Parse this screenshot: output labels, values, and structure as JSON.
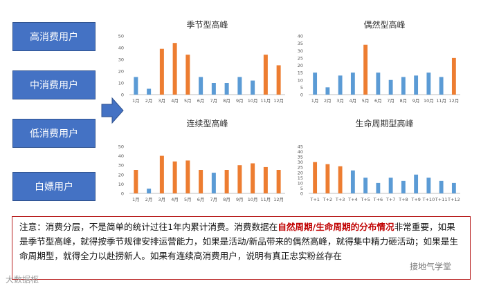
{
  "segments": [
    "高消费用户",
    "中消费用户",
    "低消费用户",
    "白嫖用户"
  ],
  "colors": {
    "blue": "#5B9BD5",
    "orange": "#ED7D31",
    "box_blue": "#4472C4",
    "highlight": "#C00000"
  },
  "chart_data": [
    {
      "type": "bar",
      "title": "季节型高峰",
      "categories": [
        "1月",
        "2月",
        "3月",
        "4月",
        "5月",
        "6月",
        "7月",
        "8月",
        "9月",
        "10月",
        "11月",
        "12月"
      ],
      "values": [
        15,
        5,
        39,
        44,
        34,
        15,
        10,
        10,
        15,
        12,
        34,
        25
      ],
      "highlight": [
        false,
        false,
        true,
        true,
        true,
        false,
        false,
        false,
        false,
        false,
        true,
        true
      ],
      "ylim": [
        0,
        50
      ],
      "yticks": [
        0,
        10,
        20,
        30,
        40,
        50
      ],
      "grid": false
    },
    {
      "type": "bar",
      "title": "偶然型高峰",
      "categories": [
        "1月",
        "2月",
        "3月",
        "4月",
        "5月",
        "6月",
        "7月",
        "8月",
        "9月",
        "10月",
        "11月",
        "12月"
      ],
      "values": [
        15,
        5,
        13,
        15,
        34,
        15,
        10,
        12,
        13,
        15,
        12,
        25
      ],
      "highlight": [
        false,
        false,
        false,
        false,
        true,
        false,
        false,
        false,
        false,
        false,
        false,
        true
      ],
      "ylim": [
        0,
        40
      ],
      "yticks": [
        0,
        5,
        10,
        15,
        20,
        25,
        30,
        35,
        40
      ],
      "grid": false
    },
    {
      "type": "bar",
      "title": "连续型高峰",
      "categories": [
        "1月",
        "2月",
        "3月",
        "4月",
        "5月",
        "6月",
        "7月",
        "8月",
        "9月",
        "10月",
        "11月",
        "12月"
      ],
      "values": [
        25,
        5,
        40,
        34,
        35,
        25,
        22,
        25,
        30,
        32,
        28,
        25
      ],
      "highlight": [
        true,
        false,
        true,
        true,
        true,
        true,
        false,
        true,
        true,
        true,
        true,
        true
      ],
      "ylim": [
        0,
        50
      ],
      "yticks": [
        0,
        10,
        20,
        30,
        40,
        50
      ],
      "grid": false
    },
    {
      "type": "bar",
      "title": "生命周期型高峰",
      "categories": [
        "T+1",
        "T+2",
        "T+3",
        "T+4",
        "T+5",
        "T+6",
        "T+7",
        "T+8",
        "T+9",
        "T+10",
        "T+11",
        "T+12"
      ],
      "values": [
        30,
        28,
        26,
        22,
        15,
        10,
        15,
        12,
        18,
        15,
        12,
        10
      ],
      "highlight": [
        true,
        true,
        true,
        false,
        false,
        false,
        false,
        false,
        false,
        false,
        false,
        false
      ],
      "ylim": [
        0,
        45
      ],
      "yticks": [
        0,
        5,
        10,
        15,
        20,
        25,
        30,
        35,
        40,
        45
      ],
      "grid": false
    }
  ],
  "note": {
    "prefix": "注意：消费分层，不是简单的统计过往1年内累计消费。消费数据在",
    "highlight": "自然周期/生命周期的分布情况",
    "suffix": "非常重要，如果是季节型高峰，就得按季节规律安排运营能力，如果是活动/新品带来的偶然高峰，就得集中精力砸活动；如果是生命周期型，就得全力以赴捞新人。如果有连续高消费用户，说明有真正忠实粉丝存在"
  },
  "watermarks": {
    "left": "大数据枢",
    "right": "接地气学堂"
  }
}
